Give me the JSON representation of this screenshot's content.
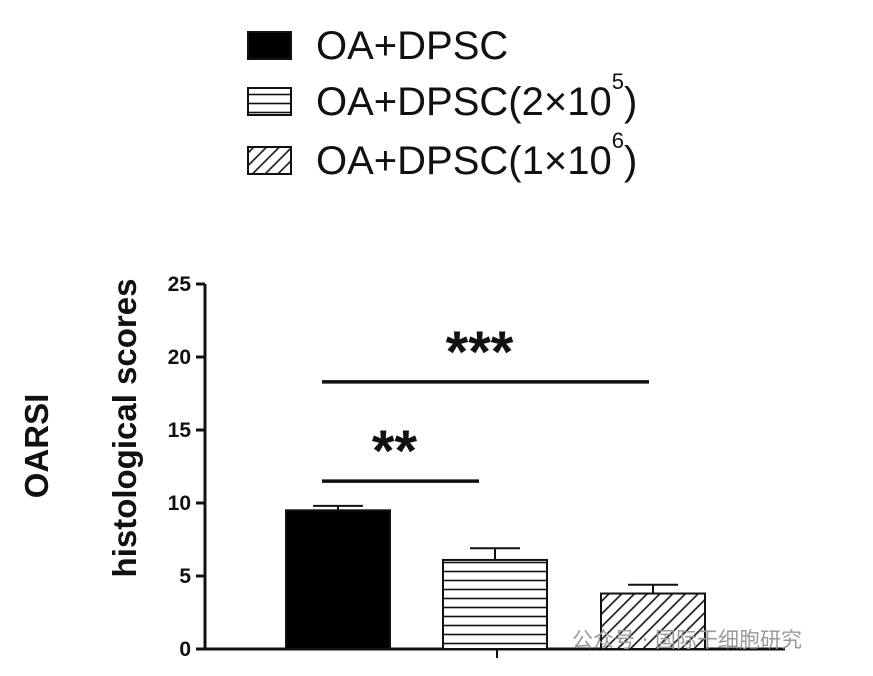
{
  "chart_data": {
    "type": "bar",
    "categories": [
      "OA+DPSC",
      "OA+DPSC(2×10^5)",
      "OA+DPSC(1×10^6)"
    ],
    "series": [
      {
        "name": "OA+DPSC",
        "value": 9.5,
        "error": 0.3,
        "pattern": "solid"
      },
      {
        "name": "OA+DPSC(2×10^5)",
        "value": 6.1,
        "error": 0.8,
        "pattern": "horizontal"
      },
      {
        "name": "OA+DPSC(1×10^6)",
        "value": 3.8,
        "error": 0.6,
        "pattern": "diagonal"
      }
    ],
    "legend": [
      {
        "label": "OA+DPSC",
        "sup": "",
        "close": "",
        "pattern": "solid"
      },
      {
        "label": "OA+DPSC(2×10",
        "sup": "5",
        "close": ")",
        "pattern": "horizontal"
      },
      {
        "label": "OA+DPSC(1×10",
        "sup": "6",
        "close": ")",
        "pattern": "diagonal"
      }
    ],
    "legend_position": "top",
    "ylabel_line1": "OARSI",
    "ylabel_line2": "histological scores",
    "ylim": [
      0,
      25
    ],
    "yticks": [
      "0",
      "5",
      "10",
      "15",
      "20",
      "25"
    ],
    "grid": false,
    "significance": [
      {
        "from": 0,
        "to": 1,
        "label": "**",
        "level": 11.5
      },
      {
        "from": 0,
        "to": 2,
        "label": "***",
        "level": 18.3
      }
    ],
    "colors": {
      "bar": "#000000",
      "fill_light": "#ffffff",
      "ink": "#111111"
    }
  },
  "watermark": "公众号 · 国际干细胞研究"
}
